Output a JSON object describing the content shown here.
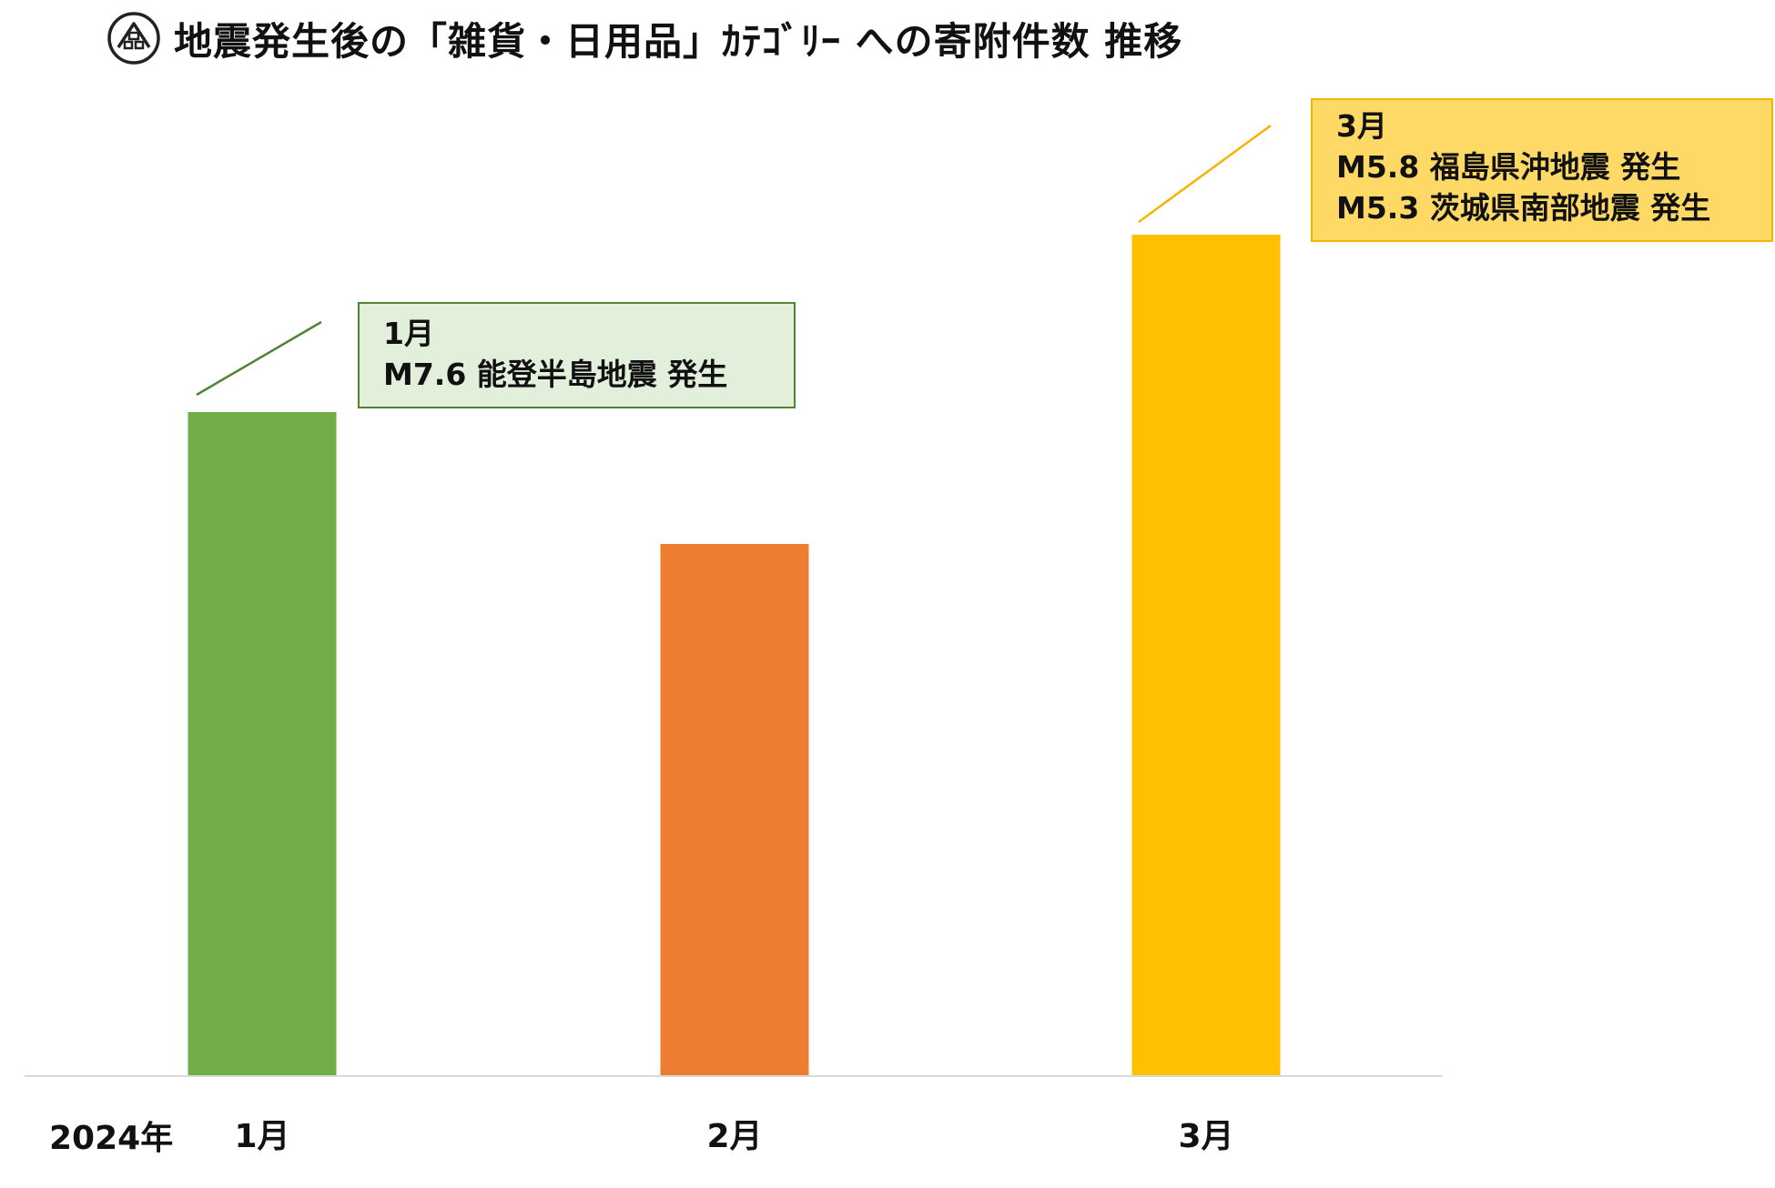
{
  "header": {
    "title": "地震発生後の「雑貨・日用品」ｶﾃｺﾞﾘｰ への寄附件数 推移",
    "logo_icon": "house-shop-logo-icon"
  },
  "chart_data": {
    "type": "bar",
    "categories": [
      "1月",
      "2月",
      "3月"
    ],
    "values": [
      73,
      58.5,
      92.5
    ],
    "colors": [
      "#70ad47",
      "#ed7d31",
      "#ffc000"
    ],
    "ylim": [
      0,
      100
    ],
    "xlabel": "",
    "ylabel": "",
    "grid": false,
    "axis_prefix": "2024年",
    "annotations": [
      {
        "category": "1月",
        "lines": [
          "1月",
          "M7.6 能登半島地震 発生"
        ],
        "background": "#e2efda",
        "border": "#548235"
      },
      {
        "category": "3月",
        "lines": [
          "3月",
          "M5.8 福島県沖地震 発生",
          "M5.3 茨城県南部地震 発生"
        ],
        "background": "#ffd966",
        "border": "#f4b400"
      }
    ]
  }
}
